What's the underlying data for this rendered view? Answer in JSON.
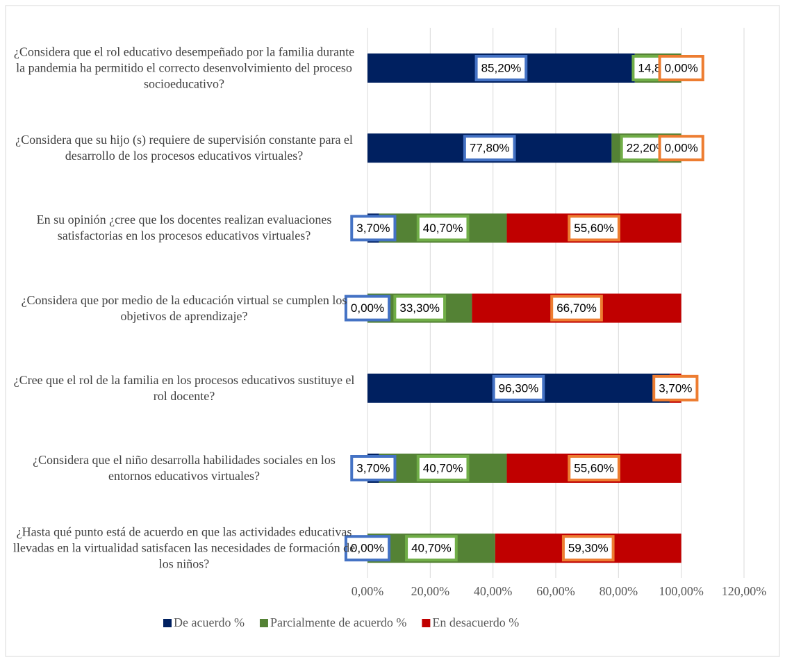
{
  "chart_data": {
    "type": "stacked-bar-horizontal",
    "categories": [
      "¿Considera que el rol educativo desempeñado por la familia durante la pandemia ha permitido el correcto desenvolvimiento del proceso socioeducativo?",
      "¿Considera que su hijo (s) requiere de supervisión constante para el desarrollo de los procesos educativos virtuales?",
      "En su opinión ¿cree que los docentes realizan evaluaciones satisfactorias en los procesos educativos virtuales?",
      "¿Considera que por medio de la educación virtual se cumplen los objetivos de aprendizaje?",
      "¿Cree que el rol de la familia en los procesos educativos sustituye el rol docente?",
      "¿Considera que el niño desarrolla habilidades sociales en los entornos educativos virtuales?",
      "¿Hasta qué punto está de acuerdo en que las actividades educativas llevadas en la virtualidad satisfacen las necesidades de formación de los niños?"
    ],
    "series": [
      {
        "name": "De acuerdo %",
        "color": "#002060",
        "label_border": "#4472c4",
        "values": [
          85.2,
          77.8,
          3.7,
          0,
          96.3,
          3.7,
          0
        ],
        "value_labels": [
          "85,20%",
          "77,80%",
          "3,70%",
          "0,00%",
          "96,30%",
          "3,70%",
          "0,00%"
        ]
      },
      {
        "name": "Parcialmente de acuerdo %",
        "color": "#548235",
        "label_border": "#70ad47",
        "values": [
          14.8,
          22.2,
          40.7,
          33.3,
          null,
          40.7,
          40.7
        ],
        "value_labels": [
          "14,80%",
          "22,20%",
          "40,70%",
          "33,30%",
          null,
          "40,70%",
          "40,70%"
        ]
      },
      {
        "name": "En desacuerdo %",
        "color": "#c00000",
        "label_border": "#ed7d31",
        "values": [
          0,
          0,
          55.6,
          66.7,
          3.7,
          55.6,
          59.3
        ],
        "value_labels": [
          "0,00%",
          "0,00%",
          "55,60%",
          "66,70%",
          "3,70%",
          "55,60%",
          "59,30%"
        ]
      }
    ],
    "xlim": [
      0,
      120
    ],
    "xticks": [
      {
        "value": 0,
        "label": "0,00%"
      },
      {
        "value": 20,
        "label": "20,00%"
      },
      {
        "value": 40,
        "label": "40,00%"
      },
      {
        "value": 60,
        "label": "60,00%"
      },
      {
        "value": 80,
        "label": "80,00%"
      },
      {
        "value": 100,
        "label": "100,00%"
      },
      {
        "value": 120,
        "label": "120,00%"
      }
    ],
    "grid": true,
    "legend": "bottom"
  }
}
